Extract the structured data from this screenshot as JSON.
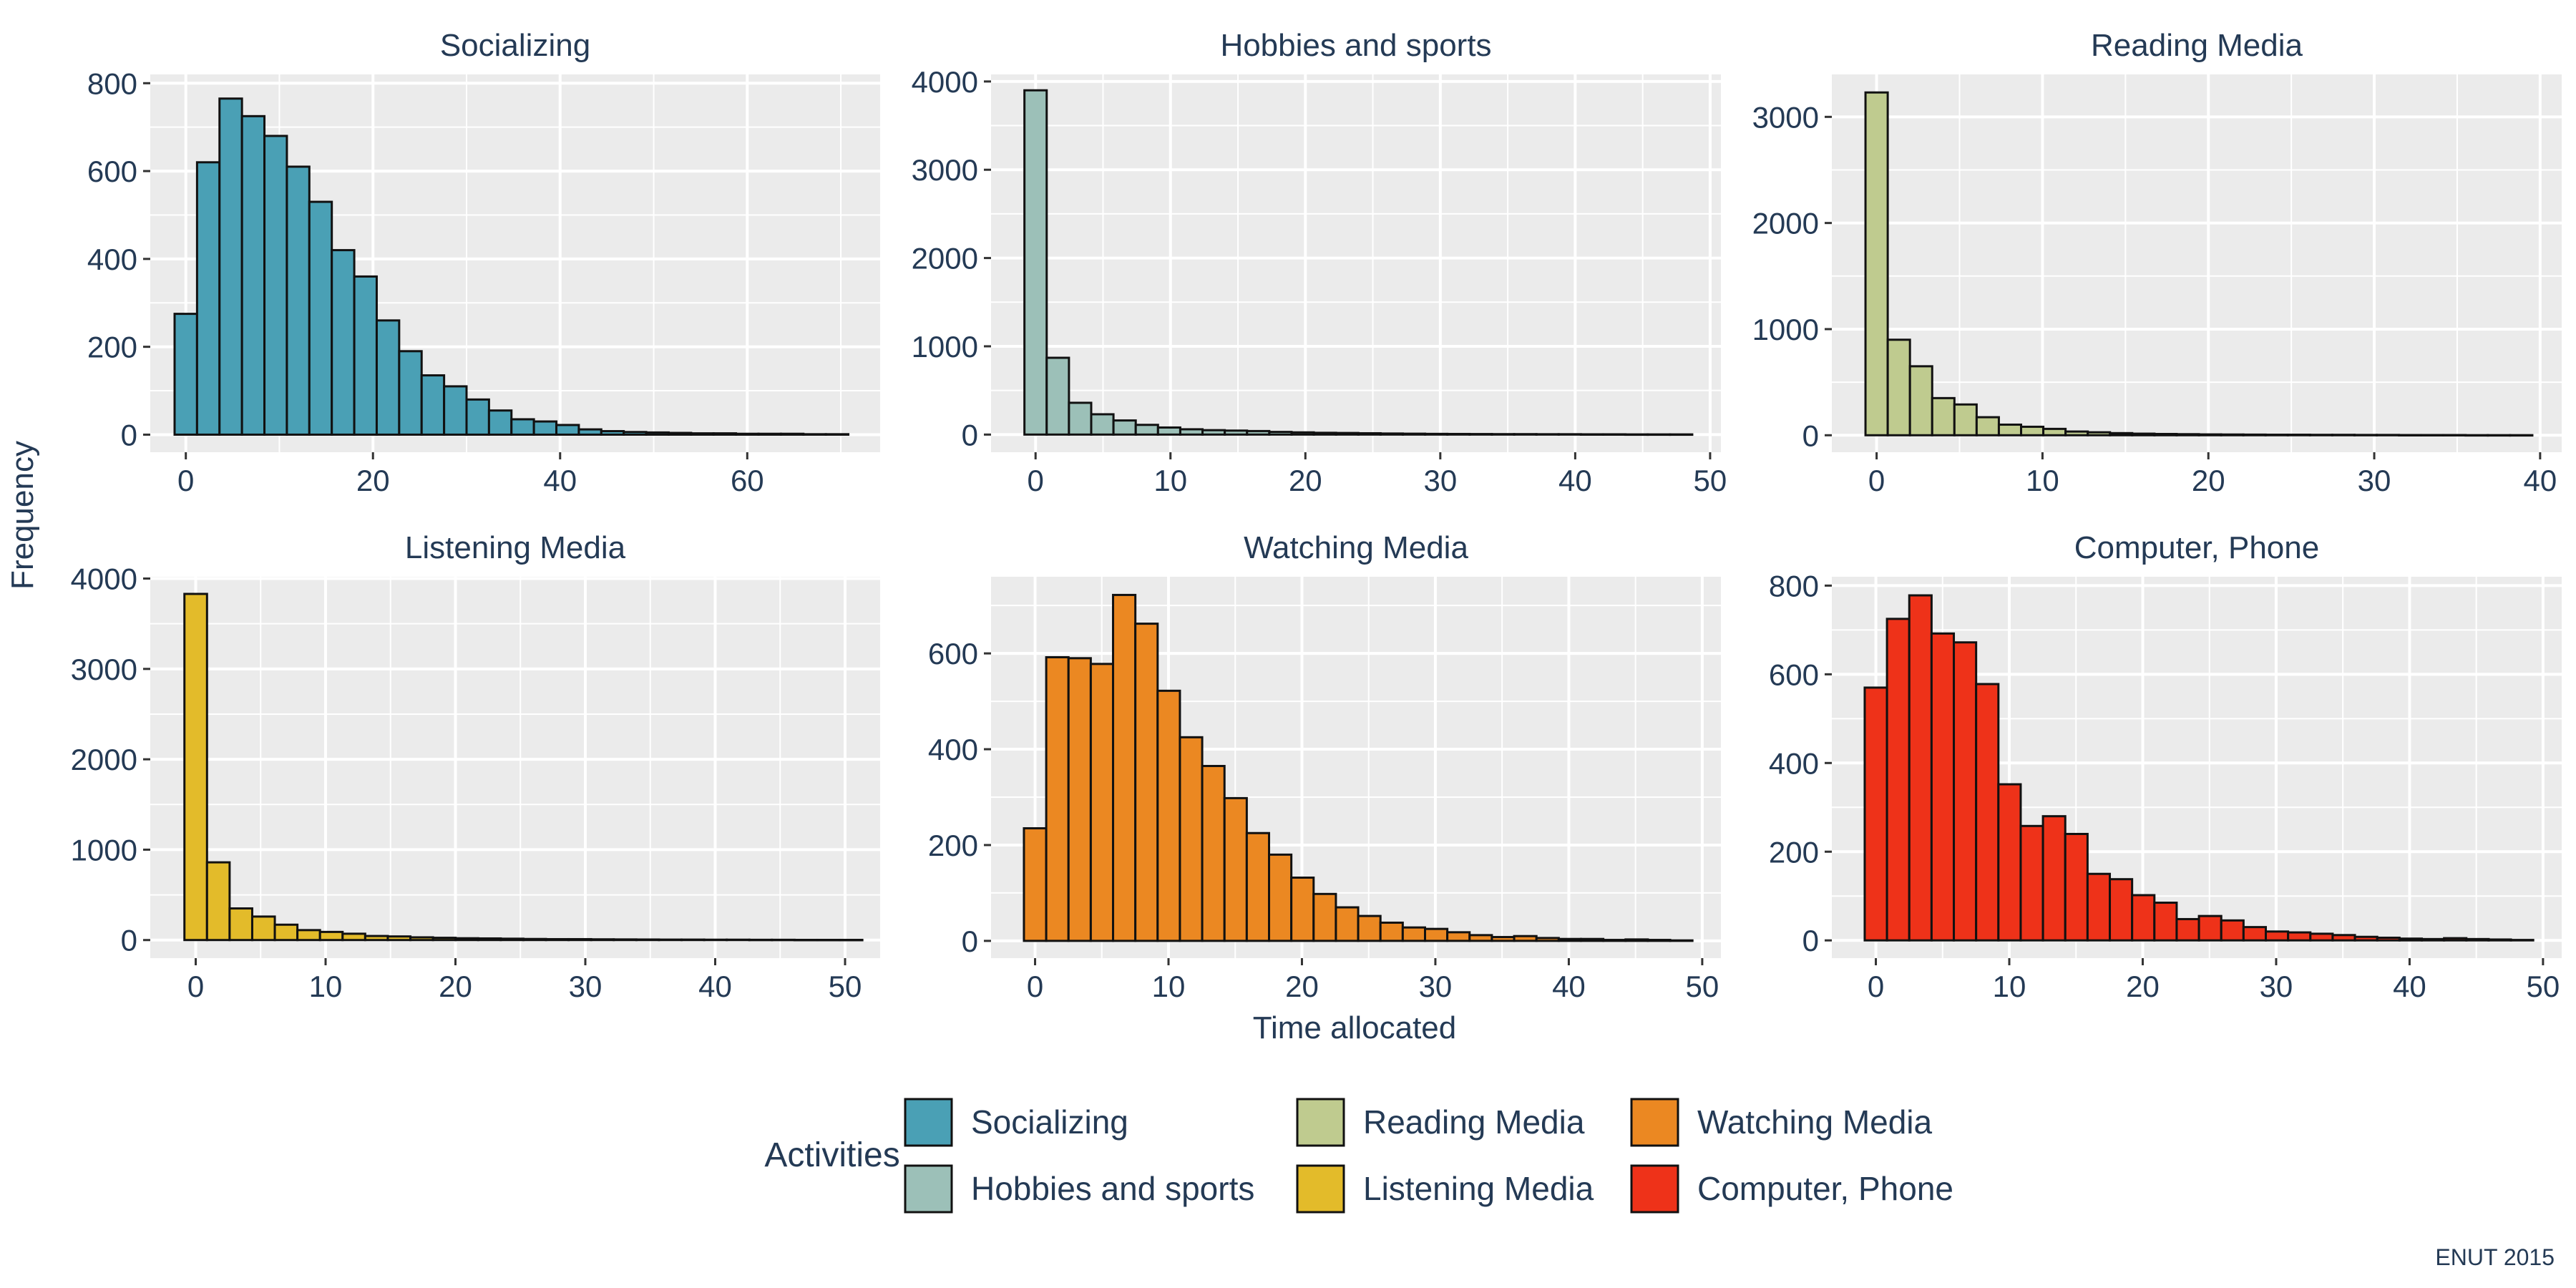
{
  "figure": {
    "y_axis_title": "Frequency",
    "x_axis_title": "Time allocated",
    "caption": "ENUT 2015",
    "legend": {
      "title": "Activities",
      "items": [
        {
          "label": "Socializing",
          "color": "#4AA0B5"
        },
        {
          "label": "Hobbies and sports",
          "color": "#9CC0B8"
        },
        {
          "label": "Reading Media",
          "color": "#BFCB8F"
        },
        {
          "label": "Listening Media",
          "color": "#E3BB2A"
        },
        {
          "label": "Watching Media",
          "color": "#EB8822"
        },
        {
          "label": "Computer, Phone",
          "color": "#EE3219"
        }
      ]
    }
  },
  "chart_data": [
    {
      "type": "bar",
      "title": "Socializing",
      "color": "#4AA0B5",
      "bin_width": 2.4,
      "first_bin_start": -1.2,
      "values": [
        275,
        620,
        765,
        725,
        680,
        610,
        530,
        420,
        360,
        260,
        190,
        135,
        110,
        80,
        55,
        35,
        30,
        22,
        12,
        8,
        6,
        5,
        4,
        3,
        3,
        2,
        2,
        2,
        1,
        1
      ],
      "xlim": [
        -3.8,
        74.2
      ],
      "xticks": [
        0,
        20,
        40,
        60
      ],
      "ylim": [
        -40,
        820
      ],
      "yticks": [
        0,
        200,
        400,
        600,
        800
      ]
    },
    {
      "type": "bar",
      "title": "Hobbies and sports",
      "color": "#9CC0B8",
      "bin_width": 1.65,
      "first_bin_start": -0.825,
      "values": [
        3900,
        870,
        360,
        230,
        160,
        110,
        80,
        60,
        50,
        45,
        40,
        30,
        25,
        20,
        18,
        15,
        12,
        10,
        8,
        7,
        6,
        5,
        5,
        4,
        4,
        3,
        3,
        2,
        2,
        2
      ],
      "xlim": [
        -3.3,
        50.8
      ],
      "xticks": [
        0,
        10,
        20,
        30,
        40,
        50
      ],
      "ylim": [
        -200,
        4080
      ],
      "yticks": [
        0,
        1000,
        2000,
        3000,
        4000
      ]
    },
    {
      "type": "bar",
      "title": "Reading Media",
      "color": "#BFCB8F",
      "bin_width": 1.34,
      "first_bin_start": -0.67,
      "values": [
        3230,
        900,
        650,
        350,
        290,
        170,
        100,
        80,
        60,
        35,
        28,
        20,
        15,
        12,
        10,
        8,
        7,
        6,
        5,
        5,
        4,
        4,
        3,
        3,
        2,
        2,
        2,
        1,
        1,
        1
      ],
      "xlim": [
        -2.7,
        41.3
      ],
      "xticks": [
        0,
        10,
        20,
        30,
        40
      ],
      "ylim": [
        -160,
        3400
      ],
      "yticks": [
        0,
        1000,
        2000,
        3000
      ]
    },
    {
      "type": "bar",
      "title": "Listening Media",
      "color": "#E3BB2A",
      "bin_width": 1.74,
      "first_bin_start": -0.87,
      "values": [
        3830,
        860,
        350,
        260,
        170,
        110,
        90,
        70,
        45,
        40,
        30,
        25,
        20,
        18,
        15,
        12,
        10,
        10,
        8,
        7,
        6,
        5,
        5,
        4,
        4,
        3,
        3,
        2,
        2,
        2
      ],
      "xlim": [
        -3.5,
        52.7
      ],
      "xticks": [
        0,
        10,
        20,
        30,
        40,
        50
      ],
      "ylim": [
        -200,
        4020
      ],
      "yticks": [
        0,
        1000,
        2000,
        3000,
        4000
      ]
    },
    {
      "type": "bar",
      "title": "Watching Media",
      "color": "#EB8822",
      "bin_width": 1.67,
      "first_bin_start": -0.835,
      "values": [
        235,
        592,
        590,
        578,
        722,
        662,
        522,
        425,
        365,
        298,
        225,
        180,
        132,
        98,
        70,
        52,
        38,
        28,
        25,
        18,
        12,
        8,
        10,
        6,
        4,
        4,
        2,
        3,
        2,
        1
      ],
      "xlim": [
        -3.3,
        51.4
      ],
      "xticks": [
        0,
        10,
        20,
        30,
        40,
        50
      ],
      "ylim": [
        -36,
        760
      ],
      "yticks": [
        0,
        200,
        400,
        600
      ]
    },
    {
      "type": "bar",
      "title": "Computer, Phone",
      "color": "#EE3219",
      "bin_width": 1.67,
      "first_bin_start": -0.835,
      "values": [
        570,
        725,
        778,
        692,
        672,
        578,
        352,
        258,
        280,
        240,
        150,
        138,
        102,
        85,
        48,
        55,
        45,
        30,
        20,
        18,
        15,
        12,
        8,
        6,
        4,
        3,
        5,
        3,
        2,
        1
      ],
      "xlim": [
        -3.3,
        51.4
      ],
      "xticks": [
        0,
        10,
        20,
        30,
        40,
        50
      ],
      "ylim": [
        -40,
        820
      ],
      "yticks": [
        0,
        200,
        400,
        600,
        800
      ]
    }
  ]
}
